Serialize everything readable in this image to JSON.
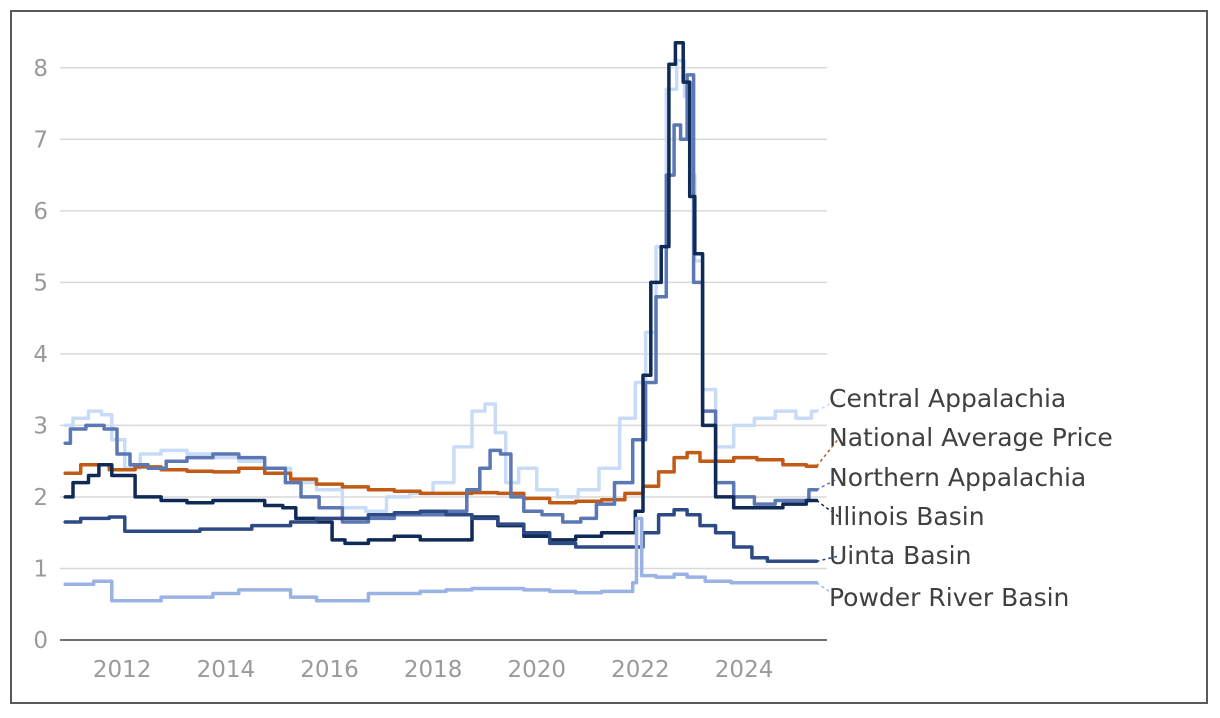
{
  "chart_data": {
    "type": "line",
    "title": "",
    "xlabel": "",
    "ylabel": "",
    "xlim": [
      2010.8,
      2025.6
    ],
    "ylim": [
      0,
      8.5
    ],
    "yticks": [
      0,
      1,
      2,
      3,
      4,
      5,
      6,
      7,
      8
    ],
    "xticks": [
      2012,
      2014,
      2016,
      2018,
      2020,
      2022,
      2024
    ],
    "grid": true,
    "legend": "right, labels at line ends",
    "series": [
      {
        "name": "Central Appalachia",
        "color": "#c9dcf7",
        "x": [
          2010.9,
          2011.2,
          2011.5,
          2011.7,
          2011.9,
          2012.2,
          2012.5,
          2013.0,
          2013.5,
          2014.0,
          2014.5,
          2015.0,
          2015.5,
          2016.0,
          2016.5,
          2016.9,
          2017.3,
          2017.8,
          2018.2,
          2018.6,
          2018.9,
          2019.1,
          2019.3,
          2019.5,
          2019.8,
          2020.2,
          2020.6,
          2021.0,
          2021.4,
          2021.8,
          2022.0,
          2022.2,
          2022.4,
          2022.6,
          2022.8,
          2022.9,
          2023.0,
          2023.1,
          2023.3,
          2023.6,
          2024.0,
          2024.4,
          2024.8,
          2025.2,
          2025.4
        ],
        "values": [
          3.0,
          3.1,
          3.2,
          3.15,
          2.8,
          2.4,
          2.6,
          2.65,
          2.6,
          2.55,
          2.5,
          2.4,
          2.2,
          2.1,
          1.85,
          1.8,
          2.0,
          2.05,
          2.2,
          2.7,
          3.2,
          3.3,
          2.9,
          2.2,
          2.4,
          2.1,
          2.0,
          2.1,
          2.4,
          3.1,
          3.6,
          4.3,
          5.5,
          7.7,
          8.1,
          7.6,
          6.5,
          5.3,
          3.5,
          2.7,
          3.0,
          3.1,
          3.2,
          3.1,
          3.2
        ]
      },
      {
        "name": "National Average Price",
        "color": "#c05a14",
        "x": [
          2010.9,
          2011.5,
          2012.0,
          2012.5,
          2013.0,
          2013.5,
          2014.0,
          2014.5,
          2015.0,
          2015.5,
          2016.0,
          2016.5,
          2017.0,
          2017.5,
          2018.0,
          2018.5,
          2019.0,
          2019.5,
          2020.0,
          2020.5,
          2021.0,
          2021.5,
          2021.9,
          2022.2,
          2022.5,
          2022.8,
          2023.0,
          2023.3,
          2023.6,
          2024.0,
          2024.5,
          2025.0,
          2025.4
        ],
        "values": [
          2.33,
          2.45,
          2.38,
          2.42,
          2.38,
          2.36,
          2.35,
          2.4,
          2.33,
          2.25,
          2.18,
          2.14,
          2.1,
          2.08,
          2.05,
          2.05,
          2.06,
          2.05,
          1.98,
          1.92,
          1.94,
          1.96,
          2.05,
          2.15,
          2.35,
          2.55,
          2.62,
          2.5,
          2.5,
          2.55,
          2.52,
          2.45,
          2.43
        ]
      },
      {
        "name": "Northern Appalachia",
        "color": "#5b77b4",
        "x": [
          2010.9,
          2011.1,
          2011.5,
          2011.8,
          2012.0,
          2012.3,
          2012.7,
          2013.0,
          2013.5,
          2014.0,
          2014.5,
          2015.0,
          2015.3,
          2015.6,
          2016.0,
          2016.5,
          2017.0,
          2017.5,
          2018.0,
          2018.5,
          2018.8,
          2019.0,
          2019.2,
          2019.4,
          2019.6,
          2019.9,
          2020.3,
          2020.7,
          2021.0,
          2021.3,
          2021.7,
          2022.0,
          2022.2,
          2022.4,
          2022.6,
          2022.7,
          2022.85,
          2022.95,
          2023.1,
          2023.3,
          2023.6,
          2024.0,
          2024.4,
          2024.8,
          2025.1,
          2025.4
        ],
        "values": [
          2.75,
          2.95,
          3.0,
          2.95,
          2.6,
          2.45,
          2.4,
          2.5,
          2.55,
          2.6,
          2.55,
          2.4,
          2.2,
          2.0,
          1.85,
          1.65,
          1.7,
          1.75,
          1.75,
          1.8,
          2.1,
          2.4,
          2.65,
          2.6,
          2.0,
          1.8,
          1.75,
          1.65,
          1.7,
          1.9,
          2.2,
          2.8,
          3.6,
          4.8,
          6.5,
          7.2,
          7.0,
          7.9,
          5.0,
          3.2,
          2.2,
          2.0,
          1.9,
          1.95,
          1.95,
          2.1
        ]
      },
      {
        "name": "Illinois Basin",
        "color": "#0f2a55",
        "x": [
          2010.9,
          2011.2,
          2011.5,
          2011.6,
          2012.0,
          2012.5,
          2013.0,
          2013.5,
          2014.0,
          2014.5,
          2015.0,
          2015.2,
          2015.5,
          2016.0,
          2016.1,
          2016.5,
          2017.0,
          2017.5,
          2018.0,
          2018.5,
          2019.0,
          2019.5,
          2020.0,
          2020.5,
          2021.0,
          2021.5,
          2021.8,
          2022.0,
          2022.1,
          2022.3,
          2022.5,
          2022.6,
          2022.75,
          2022.9,
          2023.0,
          2023.1,
          2023.3,
          2023.6,
          2024.0,
          2024.5,
          2025.0,
          2025.4
        ],
        "values": [
          2.0,
          2.2,
          2.3,
          2.45,
          2.3,
          2.0,
          1.95,
          1.92,
          1.95,
          1.95,
          1.88,
          1.85,
          1.7,
          1.65,
          1.4,
          1.35,
          1.4,
          1.45,
          1.4,
          1.4,
          1.72,
          1.6,
          1.45,
          1.4,
          1.45,
          1.5,
          1.5,
          1.8,
          3.7,
          5.0,
          5.5,
          8.05,
          8.35,
          7.8,
          6.2,
          5.4,
          3.0,
          2.0,
          1.85,
          1.85,
          1.9,
          1.95
        ]
      },
      {
        "name": "Uinta Basin",
        "color": "#2e4a85",
        "x": [
          2010.9,
          2011.5,
          2012.0,
          2012.1,
          2013.0,
          2014.0,
          2015.0,
          2015.5,
          2016.0,
          2016.5,
          2017.0,
          2017.5,
          2018.0,
          2018.5,
          2019.0,
          2019.5,
          2020.0,
          2020.5,
          2021.0,
          2021.5,
          2021.9,
          2022.2,
          2022.5,
          2022.8,
          2023.0,
          2023.3,
          2023.6,
          2024.0,
          2024.3,
          2024.6,
          2025.0,
          2025.4
        ],
        "values": [
          1.65,
          1.7,
          1.72,
          1.52,
          1.52,
          1.55,
          1.6,
          1.65,
          1.7,
          1.7,
          1.75,
          1.78,
          1.8,
          1.75,
          1.7,
          1.62,
          1.5,
          1.35,
          1.3,
          1.3,
          1.3,
          1.5,
          1.75,
          1.82,
          1.75,
          1.6,
          1.5,
          1.3,
          1.15,
          1.1,
          1.1,
          1.1
        ]
      },
      {
        "name": "Powder River Basin",
        "color": "#9ab3e4",
        "x": [
          2010.9,
          2011.3,
          2011.6,
          2012.0,
          2012.5,
          2013.0,
          2013.5,
          2014.0,
          2014.5,
          2015.0,
          2015.5,
          2016.0,
          2016.5,
          2017.0,
          2017.5,
          2018.0,
          2018.5,
          2019.0,
          2019.5,
          2020.0,
          2020.5,
          2021.0,
          2021.5,
          2021.8,
          2021.9,
          2021.95,
          2022.1,
          2022.5,
          2022.8,
          2023.0,
          2023.5,
          2024.0,
          2024.5,
          2025.0,
          2025.4
        ],
        "values": [
          0.78,
          0.78,
          0.82,
          0.55,
          0.55,
          0.6,
          0.6,
          0.65,
          0.7,
          0.7,
          0.6,
          0.55,
          0.55,
          0.65,
          0.65,
          0.68,
          0.7,
          0.72,
          0.72,
          0.7,
          0.68,
          0.66,
          0.68,
          0.68,
          0.8,
          1.7,
          0.9,
          0.88,
          0.92,
          0.88,
          0.82,
          0.8,
          0.8,
          0.8,
          0.8
        ]
      }
    ]
  }
}
